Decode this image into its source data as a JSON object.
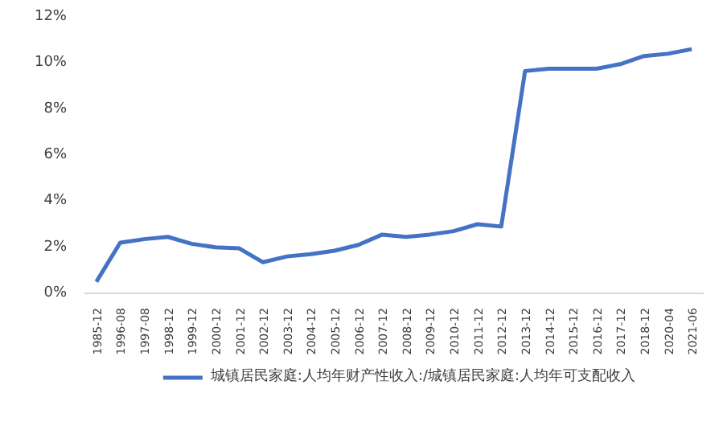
{
  "chart_data": {
    "type": "line",
    "categories": [
      "1985-12",
      "1996-08",
      "1997-08",
      "1998-12",
      "1999-12",
      "2000-12",
      "2001-12",
      "2002-12",
      "2003-12",
      "2004-12",
      "2005-12",
      "2006-12",
      "2007-12",
      "2008-12",
      "2009-12",
      "2010-12",
      "2011-12",
      "2012-12",
      "2013-12",
      "2014-12",
      "2015-12",
      "2016-12",
      "2017-12",
      "2018-12",
      "2020-04",
      "2021-06"
    ],
    "series": [
      {
        "name": "城镇居民家庭:人均年财产性收入:/城镇居民家庭:人均年可支配收入",
        "color": "#4472c4",
        "values": [
          0.5,
          2.2,
          2.35,
          2.45,
          2.15,
          2.0,
          1.95,
          1.35,
          1.6,
          1.7,
          1.85,
          2.1,
          2.55,
          2.45,
          2.55,
          2.7,
          3.0,
          2.9,
          9.65,
          9.75,
          9.75,
          9.75,
          9.95,
          10.3,
          10.4,
          10.6
        ]
      }
    ],
    "ylim": [
      0,
      12
    ],
    "yticks": [
      {
        "value": 0,
        "label": "0%"
      },
      {
        "value": 2,
        "label": "2%"
      },
      {
        "value": 4,
        "label": "4%"
      },
      {
        "value": 6,
        "label": "6%"
      },
      {
        "value": 8,
        "label": "8%"
      },
      {
        "value": 10,
        "label": "10%"
      },
      {
        "value": 12,
        "label": "12%"
      }
    ],
    "grid": false,
    "legend": "bottom",
    "marker": "none",
    "line_style": "solid"
  }
}
